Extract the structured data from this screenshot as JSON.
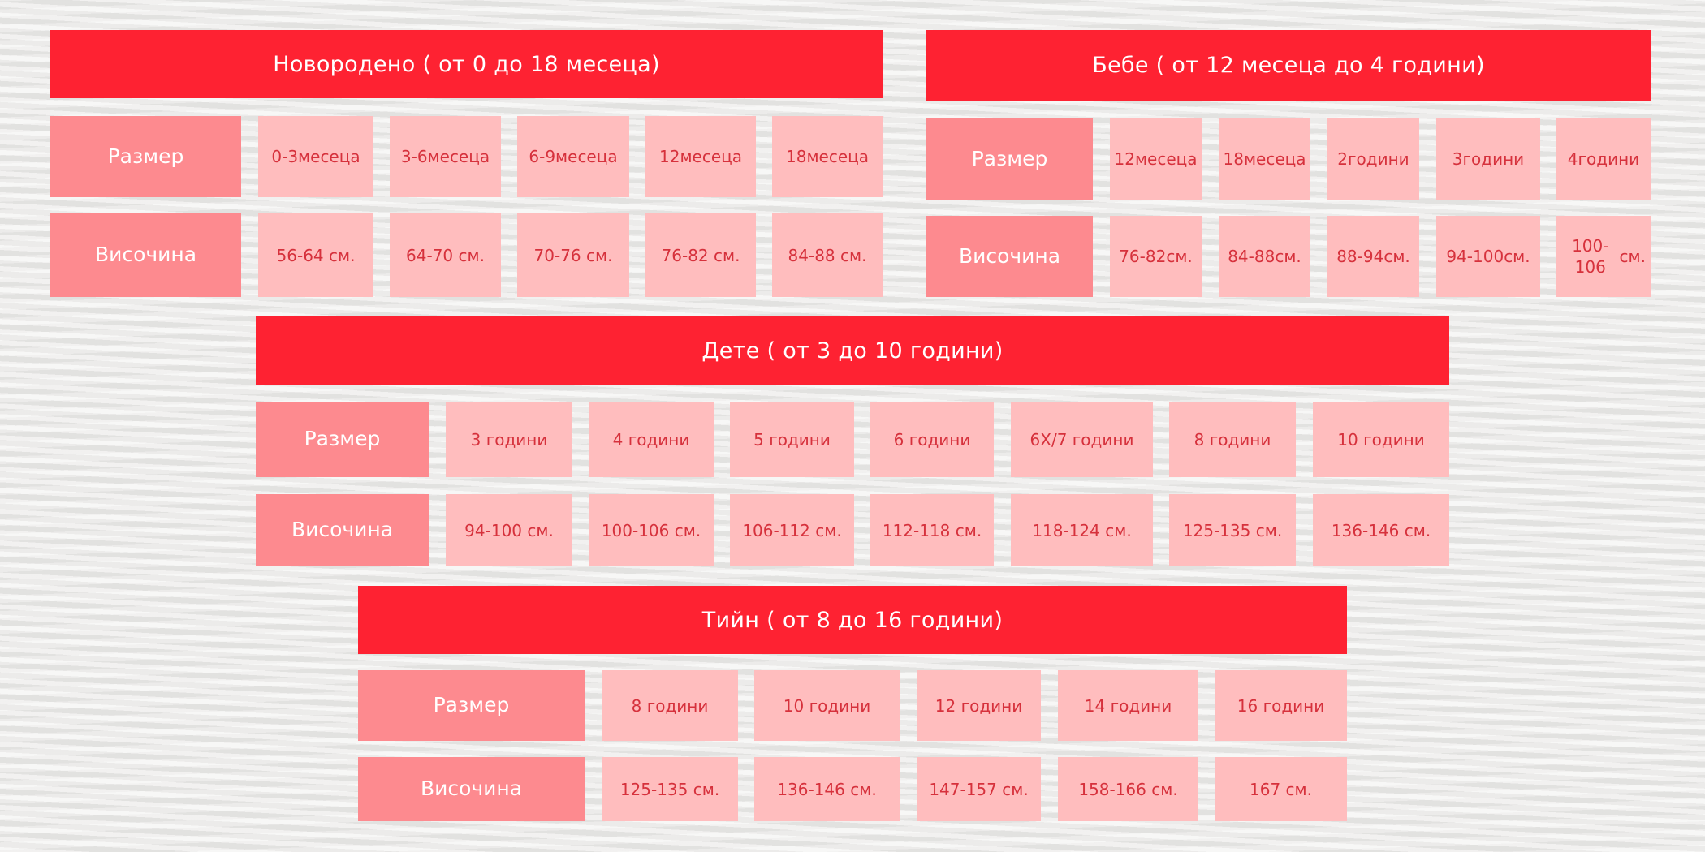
{
  "tables": {
    "newborn": {
      "title": "Новородено ( от 0 до 18 месеца)",
      "size_label": "Размер",
      "height_label": "Височина",
      "sizes": [
        [
          "0-3",
          "месеца"
        ],
        [
          "3-6",
          "месеца"
        ],
        [
          "6-9",
          "месеца"
        ],
        [
          "12",
          "месеца"
        ],
        [
          "18",
          "месеца"
        ]
      ],
      "heights": [
        [
          "56-64 см."
        ],
        [
          "64-70 см."
        ],
        [
          "70-76 см."
        ],
        [
          "76-82 см."
        ],
        [
          "84-88 см."
        ]
      ]
    },
    "baby": {
      "title": "Бебе ( от 12 месеца до 4 години)",
      "size_label": "Размер",
      "height_label": "Височина",
      "sizes": [
        [
          "12",
          "месеца"
        ],
        [
          "18",
          "месеца"
        ],
        [
          "2",
          "години"
        ],
        [
          "3",
          "години"
        ],
        [
          "4",
          "години"
        ]
      ],
      "heights": [
        [
          "76-82",
          "см."
        ],
        [
          "84-88",
          "см."
        ],
        [
          "88-94",
          "см."
        ],
        [
          "94-100",
          "см."
        ],
        [
          "100-106",
          "см."
        ]
      ]
    },
    "kid": {
      "title": "Дете ( от 3 до 10 години)",
      "size_label": "Размер",
      "height_label": "Височина",
      "sizes": [
        [
          "3 години"
        ],
        [
          "4 години"
        ],
        [
          "5 години"
        ],
        [
          "6 години"
        ],
        [
          "6X/7 години"
        ],
        [
          "8 години"
        ],
        [
          "10 години"
        ]
      ],
      "heights": [
        [
          "94-100 см."
        ],
        [
          "100-106 см."
        ],
        [
          "106-112 см."
        ],
        [
          "112-118 см."
        ],
        [
          "118-124 см."
        ],
        [
          "125-135 см."
        ],
        [
          "136-146 см."
        ]
      ]
    },
    "teen": {
      "title": "Тийн ( от 8 до 16 години)",
      "size_label": "Размер",
      "height_label": "Височина",
      "sizes": [
        [
          "8 години"
        ],
        [
          "10 години"
        ],
        [
          "12 години"
        ],
        [
          "14 години"
        ],
        [
          "16 години"
        ]
      ],
      "heights": [
        [
          "125-135 см."
        ],
        [
          "136-146 см."
        ],
        [
          "147-157 см."
        ],
        [
          "158-166 см."
        ],
        [
          "167 см."
        ]
      ]
    }
  },
  "colors": {
    "title_bar": "#fe2232",
    "header_cell": "#fd8a8f",
    "value_cell": "#ffbdbe",
    "value_text": "#d6313c"
  }
}
